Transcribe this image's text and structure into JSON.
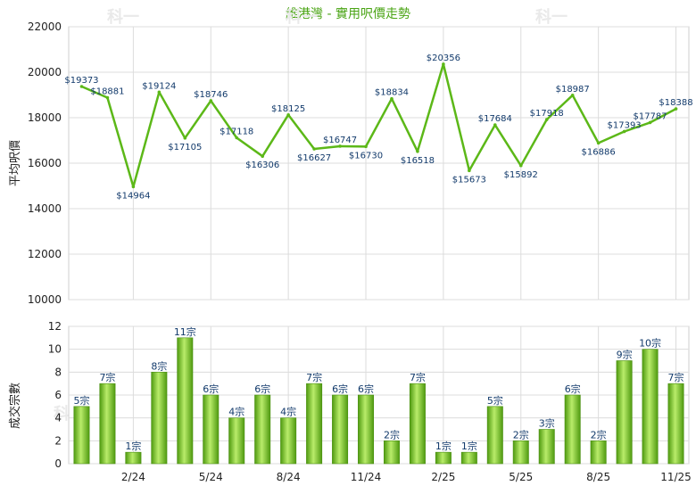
{
  "chart_data": [
    {
      "type": "line",
      "title": "維港灣 - 實用呎價走勢",
      "ylabel": "平均呎價",
      "ylim": [
        10000,
        22000
      ],
      "yticks": [
        10000,
        12000,
        14000,
        16000,
        18000,
        20000,
        22000
      ],
      "xtick_labels": [
        "2/24",
        "5/24",
        "8/24",
        "11/24",
        "2/25",
        "5/25",
        "8/25",
        "11/25"
      ],
      "series": [
        {
          "values": [
            19373,
            18881,
            14964,
            19124,
            17105,
            18746,
            17118,
            16306,
            18125,
            16627,
            16747,
            16730,
            18834,
            16518,
            20356,
            15673,
            17684,
            15892,
            17918,
            18987,
            16886,
            17393,
            17787,
            18388
          ],
          "labels": [
            "$19373",
            "$18881",
            "$14964",
            "$19124",
            "$17105",
            "$18746",
            "$17118",
            "$16306",
            "$18125",
            "$16627",
            "$16747",
            "$16730",
            "$18834",
            "$16518",
            "$20356",
            "$15673",
            "$17684",
            "$15892",
            "$17918",
            "$18987",
            "$16886",
            "$17393",
            "$17787",
            "$18388"
          ]
        }
      ],
      "grid": true,
      "color": "#5cb818"
    },
    {
      "type": "bar",
      "ylabel": "成交宗數",
      "ylim": [
        0,
        12
      ],
      "yticks": [
        0,
        2,
        4,
        6,
        8,
        10,
        12
      ],
      "xtick_labels": [
        "2/24",
        "5/24",
        "8/24",
        "11/24",
        "2/25",
        "5/25",
        "8/25",
        "11/25"
      ],
      "series": [
        {
          "values": [
            5,
            7,
            1,
            8,
            11,
            6,
            4,
            6,
            4,
            7,
            6,
            6,
            2,
            7,
            1,
            1,
            5,
            2,
            3,
            6,
            2,
            9,
            10,
            7
          ],
          "labels": [
            "5宗",
            "7宗",
            "1宗",
            "8宗",
            "11宗",
            "6宗",
            "4宗",
            "6宗",
            "4宗",
            "7宗",
            "6宗",
            "6宗",
            "2宗",
            "7宗",
            "1宗",
            "1宗",
            "5宗",
            "2宗",
            "3宗",
            "6宗",
            "2宗",
            "9宗",
            "10宗",
            "7宗"
          ]
        }
      ],
      "grid": true,
      "color": "#6cc21c"
    }
  ],
  "watermark": "科一"
}
